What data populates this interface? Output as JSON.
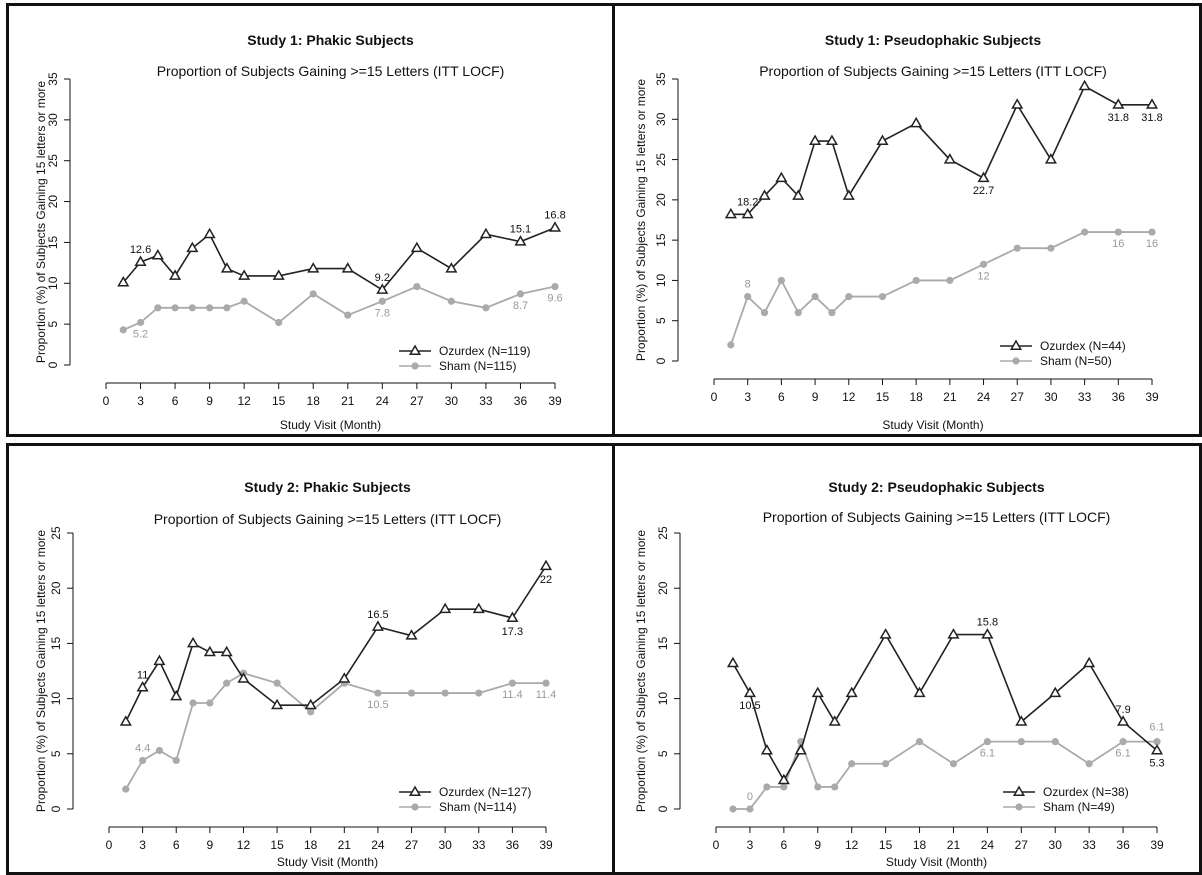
{
  "chart_data": [
    {
      "type": "line",
      "title": "Study 1: Phakic Subjects",
      "subtitle": "Proportion of Subjects Gaining >=15 Letters (ITT LOCF)",
      "xlabel": "Study Visit (Month)",
      "ylabel": "Proportion (%) of Subjects Gaining 15 letters or more",
      "xlim": [
        0,
        39
      ],
      "ylim": [
        0,
        35
      ],
      "xticks": [
        0,
        3,
        6,
        9,
        12,
        15,
        18,
        21,
        24,
        27,
        30,
        33,
        36,
        39
      ],
      "yticks": [
        0,
        5,
        10,
        15,
        20,
        25,
        30,
        35
      ],
      "legend_position": "bottom-right",
      "series": [
        {
          "name": "Ozurdex (N=119)",
          "color": "#222222",
          "marker": "triangle",
          "x": [
            1.5,
            3,
            4.5,
            6,
            7.5,
            9,
            10.5,
            12,
            15,
            18,
            21,
            24,
            27,
            30,
            33,
            36,
            39
          ],
          "y": [
            10.1,
            12.6,
            13.4,
            10.9,
            14.3,
            16,
            11.8,
            10.9,
            10.9,
            11.8,
            11.8,
            9.2,
            14.3,
            11.8,
            16,
            15.1,
            16.8
          ],
          "labels": [
            null,
            "12.6",
            null,
            null,
            null,
            null,
            null,
            null,
            null,
            null,
            null,
            "9.2",
            null,
            null,
            null,
            "15.1",
            "16.8"
          ]
        },
        {
          "name": "Sham (N=115)",
          "color": "#aaaaaa",
          "marker": "circle",
          "x": [
            1.5,
            3,
            4.5,
            6,
            7.5,
            9,
            10.5,
            12,
            15,
            18,
            21,
            24,
            27,
            30,
            33,
            36,
            39
          ],
          "y": [
            4.3,
            5.2,
            7,
            7,
            7,
            7,
            7,
            7.8,
            5.2,
            8.7,
            6.1,
            7.8,
            9.6,
            7.8,
            7,
            8.7,
            9.6
          ],
          "labels": [
            null,
            "5.2",
            null,
            null,
            null,
            null,
            null,
            null,
            null,
            null,
            null,
            "7.8",
            null,
            null,
            null,
            "8.7",
            "9.6"
          ]
        }
      ]
    },
    {
      "type": "line",
      "title": "Study 1: Pseudophakic Subjects",
      "subtitle": "Proportion of Subjects Gaining >=15 Letters (ITT LOCF)",
      "xlabel": "Study Visit (Month)",
      "ylabel": "Proportion (%) of Subjects Gaining 15 letters or more",
      "xlim": [
        0,
        39
      ],
      "ylim": [
        0,
        35
      ],
      "xticks": [
        0,
        3,
        6,
        9,
        12,
        15,
        18,
        21,
        24,
        27,
        30,
        33,
        36,
        39
      ],
      "yticks": [
        0,
        5,
        10,
        15,
        20,
        25,
        30,
        35
      ],
      "legend_position": "bottom-right",
      "series": [
        {
          "name": "Ozurdex (N=44)",
          "color": "#222222",
          "marker": "triangle",
          "x": [
            1.5,
            3,
            4.5,
            6,
            7.5,
            9,
            10.5,
            12,
            15,
            18,
            21,
            24,
            27,
            30,
            33,
            36,
            39
          ],
          "y": [
            18.2,
            18.2,
            20.5,
            22.7,
            20.5,
            27.3,
            27.3,
            20.5,
            27.3,
            29.5,
            25,
            22.7,
            31.8,
            25,
            34.1,
            31.8,
            31.8
          ],
          "labels": [
            null,
            "18.2",
            null,
            null,
            null,
            null,
            null,
            null,
            null,
            null,
            null,
            "22.7",
            null,
            null,
            null,
            "31.8",
            "31.8"
          ]
        },
        {
          "name": "Sham (N=50)",
          "color": "#aaaaaa",
          "marker": "circle",
          "x": [
            1.5,
            3,
            4.5,
            6,
            7.5,
            9,
            10.5,
            12,
            15,
            18,
            21,
            24,
            27,
            30,
            33,
            36,
            39
          ],
          "y": [
            2,
            8,
            6,
            10,
            6,
            8,
            6,
            8,
            8,
            10,
            10,
            12,
            14,
            14,
            16,
            16,
            16
          ],
          "labels": [
            null,
            "8",
            null,
            null,
            null,
            null,
            null,
            null,
            null,
            null,
            null,
            "12",
            null,
            null,
            null,
            "16",
            "16"
          ]
        }
      ]
    },
    {
      "type": "line",
      "title": "Study 2: Phakic Subjects",
      "subtitle": "Proportion of Subjects Gaining >=15 Letters (ITT LOCF)",
      "xlabel": "Study Visit (Month)",
      "ylabel": "Proportion (%) of Subjects Gaining 15 letters or more",
      "xlim": [
        0,
        39
      ],
      "ylim": [
        0,
        25
      ],
      "xticks": [
        0,
        3,
        6,
        9,
        12,
        15,
        18,
        21,
        24,
        27,
        30,
        33,
        36,
        39
      ],
      "yticks": [
        0,
        5,
        10,
        15,
        20,
        25
      ],
      "legend_position": "bottom-right",
      "series": [
        {
          "name": "Ozurdex (N=127)",
          "color": "#222222",
          "marker": "triangle",
          "x": [
            1.5,
            3,
            4.5,
            6,
            7.5,
            9,
            10.5,
            12,
            15,
            18,
            21,
            24,
            27,
            30,
            33,
            36,
            39
          ],
          "y": [
            7.9,
            11,
            13.4,
            10.2,
            15,
            14.2,
            14.2,
            11.8,
            9.4,
            9.4,
            11.8,
            16.5,
            15.7,
            18.1,
            18.1,
            17.3,
            22
          ],
          "labels": [
            null,
            "11",
            null,
            null,
            null,
            null,
            null,
            null,
            null,
            null,
            null,
            "16.5",
            null,
            null,
            null,
            "17.3",
            "22"
          ]
        },
        {
          "name": "Sham (N=114)",
          "color": "#aaaaaa",
          "marker": "circle",
          "x": [
            1.5,
            3,
            4.5,
            6,
            7.5,
            9,
            10.5,
            12,
            15,
            18,
            21,
            24,
            27,
            30,
            33,
            36,
            39
          ],
          "y": [
            1.8,
            4.4,
            5.3,
            4.4,
            9.6,
            9.6,
            11.4,
            12.3,
            11.4,
            8.8,
            11.4,
            10.5,
            10.5,
            10.5,
            10.5,
            11.4,
            11.4
          ],
          "labels": [
            null,
            "4.4",
            null,
            null,
            null,
            null,
            null,
            null,
            null,
            null,
            null,
            "10.5",
            null,
            null,
            null,
            "11.4",
            "11.4"
          ]
        }
      ]
    },
    {
      "type": "line",
      "title": "Study 2: Pseudophakic Subjects",
      "subtitle": "Proportion of Subjects Gaining >=15 Letters (ITT LOCF)",
      "xlabel": "Study Visit (Month)",
      "ylabel": "Proportion (%) of Subjects Gaining 15 letters or more",
      "xlim": [
        0,
        39
      ],
      "ylim": [
        0,
        25
      ],
      "xticks": [
        0,
        3,
        6,
        9,
        12,
        15,
        18,
        21,
        24,
        27,
        30,
        33,
        36,
        39
      ],
      "yticks": [
        0,
        5,
        10,
        15,
        20,
        25
      ],
      "legend_position": "bottom-right",
      "series": [
        {
          "name": "Ozurdex (N=38)",
          "color": "#222222",
          "marker": "triangle",
          "x": [
            1.5,
            3,
            4.5,
            6,
            7.5,
            9,
            10.5,
            12,
            15,
            18,
            21,
            24,
            27,
            30,
            33,
            36,
            39
          ],
          "y": [
            13.2,
            10.5,
            5.3,
            2.6,
            5.3,
            10.5,
            7.9,
            10.5,
            15.8,
            10.5,
            15.8,
            15.8,
            7.9,
            10.5,
            13.2,
            7.9,
            5.3
          ],
          "labels": [
            null,
            "10.5",
            null,
            null,
            null,
            null,
            null,
            null,
            null,
            null,
            null,
            "15.8",
            null,
            null,
            null,
            "7.9",
            "5.3"
          ]
        },
        {
          "name": "Sham (N=49)",
          "color": "#aaaaaa",
          "marker": "circle",
          "x": [
            1.5,
            3,
            4.5,
            6,
            7.5,
            9,
            10.5,
            12,
            15,
            18,
            21,
            24,
            27,
            30,
            33,
            36,
            39
          ],
          "y": [
            0,
            0,
            2,
            2,
            6.1,
            2,
            2,
            4.1,
            4.1,
            6.1,
            4.1,
            6.1,
            6.1,
            6.1,
            4.1,
            6.1,
            6.1
          ],
          "labels": [
            null,
            "0",
            null,
            null,
            null,
            null,
            null,
            null,
            null,
            null,
            null,
            "6.1",
            null,
            null,
            null,
            "6.1",
            "6.1"
          ]
        }
      ]
    }
  ]
}
